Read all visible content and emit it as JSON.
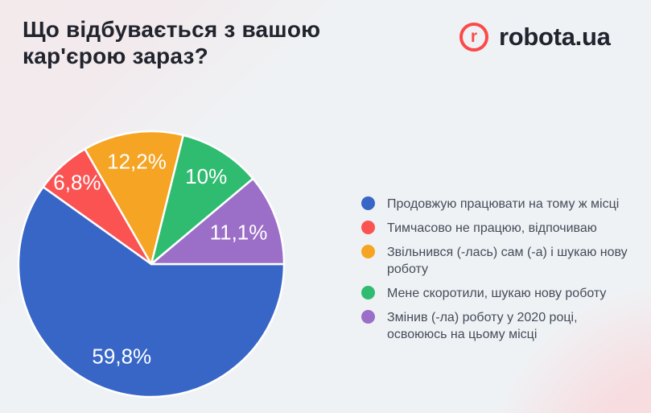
{
  "header": {
    "title": "Що відбувається з вашою кар'єрою зараз?",
    "logo": {
      "mark": "r",
      "text": "robota.ua",
      "accent_color": "#fa4a49",
      "text_color": "#20242d"
    }
  },
  "chart_data": {
    "type": "pie",
    "title": "Що відбувається з вашою кар'єрою зараз?",
    "legend_position": "right",
    "start_angle_deg_clockwise_from_east": 0,
    "slices": [
      {
        "label": "Продовжую працювати на тому ж місці",
        "value": 59.8,
        "value_label": "59,8%",
        "color": "#3866C7"
      },
      {
        "label": "Тимчасово не працюю, відпочиваю",
        "value": 6.8,
        "value_label": "6,8%",
        "color": "#FB5252"
      },
      {
        "label": "Звільнився (-лась) сам (-а) і шукаю нову роботу",
        "value": 12.2,
        "value_label": "12,2%",
        "color": "#F5A423"
      },
      {
        "label": "Мене скоротили, шукаю нову роботу",
        "value": 10,
        "value_label": "10%",
        "color": "#30BC70"
      },
      {
        "label": "Змінив (-ла) роботу у 2020 році, освоююсь на цьому місці",
        "value": 11.1,
        "value_label": "11,1%",
        "color": "#9B6FC7"
      }
    ]
  }
}
